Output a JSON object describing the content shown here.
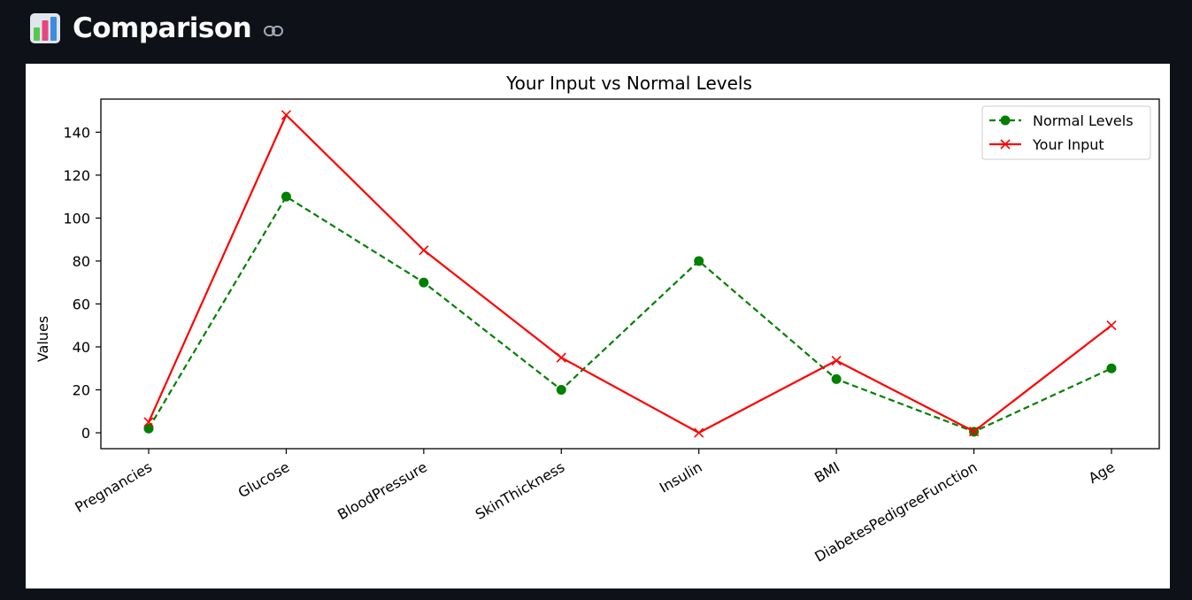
{
  "header": {
    "title": "Comparison",
    "emoji_icon": "bar-chart-icon",
    "anchor_icon": "link-icon"
  },
  "colors": {
    "page_background": "#0e1117",
    "panel_background": "#ffffff",
    "normal_series": "#008000",
    "input_series": "#ff0000",
    "title_text": "#fafafa"
  },
  "chart_data": {
    "type": "line",
    "title": "Your Input vs Normal Levels",
    "xlabel": "",
    "ylabel": "Values",
    "categories": [
      "Pregnancies",
      "Glucose",
      "BloodPressure",
      "SkinThickness",
      "Insulin",
      "BMI",
      "DiabetesPedigreeFunction",
      "Age"
    ],
    "series": [
      {
        "name": "Normal Levels",
        "values": [
          2,
          110,
          70,
          20,
          80,
          25,
          0.5,
          30
        ],
        "color": "#008000",
        "line_style": "dashed",
        "marker": "circle"
      },
      {
        "name": "Your Input",
        "values": [
          5,
          148,
          85,
          35,
          0,
          33.6,
          0.627,
          50
        ],
        "color": "#ff0000",
        "line_style": "solid",
        "marker": "x"
      }
    ],
    "y_ticks": [
      0,
      20,
      40,
      60,
      80,
      100,
      120,
      140
    ],
    "ylim": [
      -7.4,
      155.4
    ],
    "grid": false,
    "legend_position": "top-right",
    "x_tick_rotation": "30 degrees"
  }
}
